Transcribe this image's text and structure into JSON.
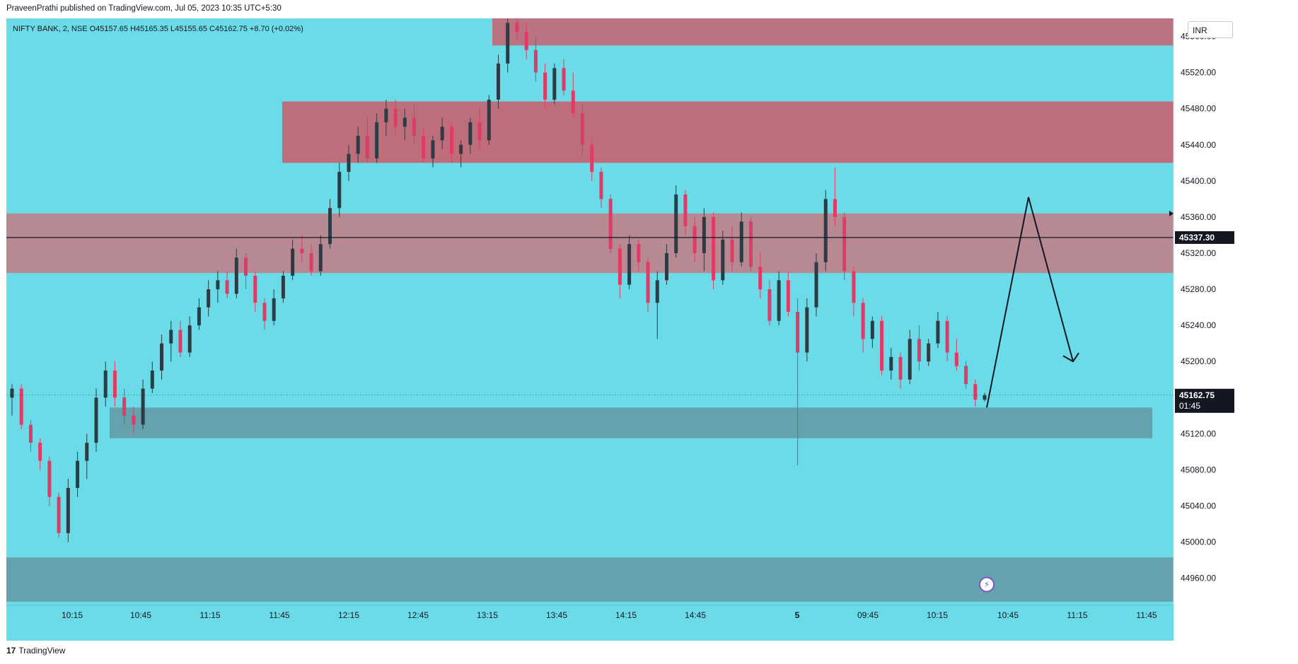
{
  "header": {
    "publish_line": "PraveenPrathi published on TradingView.com, Jul 05, 2023 10:35 UTC+5:30"
  },
  "legend": {
    "text": "NIFTY BANK, 2, NSE  O45157.65  H45165.35  L45155.65  C45162.75  +8.70 (+0.02%)"
  },
  "currency_button": "INR",
  "footer": {
    "brand": "TradingView",
    "logo_icon": "tradingview-logo-icon"
  },
  "colors": {
    "background": "#6bdbe7",
    "resistance_zone": "#c8626f",
    "mid_zone": "#c47a84",
    "support_zone": "#6399a3",
    "bull_candle": "#2d3c44",
    "bear_candle": "#e03b66",
    "line": "#131722"
  },
  "chart_data": {
    "type": "candlestick",
    "symbol": "NIFTY BANK",
    "interval": "2",
    "exchange": "NSE",
    "ylim": [
      44930,
      45580
    ],
    "y_ticks": [
      "44960.00",
      "45000.00",
      "45040.00",
      "45080.00",
      "45120.00",
      "45160.00",
      "45200.00",
      "45240.00",
      "45280.00",
      "45320.00",
      "45360.00",
      "45400.00",
      "45440.00",
      "45480.00",
      "45520.00",
      "45560.00"
    ],
    "x_ticks": [
      "10:15",
      "10:45",
      "11:15",
      "11:45",
      "12:15",
      "12:45",
      "13:15",
      "13:45",
      "14:15",
      "14:45",
      "5",
      "09:45",
      "10:15",
      "10:45",
      "11:15",
      "11:45"
    ],
    "horizontal_line": {
      "label": "45337.30",
      "value": 45337.3
    },
    "last_price": {
      "value": "45162.75",
      "countdown": "01:45"
    },
    "zones": [
      {
        "name": "top resistance",
        "from": 45550,
        "to": 45590
      },
      {
        "name": "upper resistance",
        "from": 45420,
        "to": 45488
      },
      {
        "name": "mid zone",
        "from": 45298,
        "to": 45364
      },
      {
        "name": "support",
        "from": 45115,
        "to": 45149
      },
      {
        "name": "lower support",
        "from": 44934,
        "to": 44983
      }
    ],
    "projection": [
      [
        45149,
        45382,
        45200
      ]
    ],
    "candles": [
      [
        45160,
        45175,
        45140,
        45170
      ],
      [
        45170,
        45175,
        45125,
        45130
      ],
      [
        45130,
        45135,
        45100,
        45110
      ],
      [
        45110,
        45115,
        45080,
        45090
      ],
      [
        45090,
        45095,
        45040,
        45050
      ],
      [
        45050,
        45055,
        45005,
        45010
      ],
      [
        45010,
        45070,
        45000,
        45060
      ],
      [
        45060,
        45100,
        45050,
        45090
      ],
      [
        45090,
        45120,
        45070,
        45110
      ],
      [
        45110,
        45170,
        45100,
        45160
      ],
      [
        45160,
        45200,
        45150,
        45190
      ],
      [
        45190,
        45200,
        45150,
        45160
      ],
      [
        45160,
        45170,
        45130,
        45140
      ],
      [
        45140,
        45150,
        45120,
        45130
      ],
      [
        45130,
        45180,
        45125,
        45170
      ],
      [
        45170,
        45200,
        45165,
        45190
      ],
      [
        45190,
        45230,
        45180,
        45220
      ],
      [
        45220,
        45245,
        45200,
        45235
      ],
      [
        45235,
        45245,
        45205,
        45210
      ],
      [
        45210,
        45250,
        45205,
        45240
      ],
      [
        45240,
        45270,
        45235,
        45260
      ],
      [
        45260,
        45290,
        45250,
        45280
      ],
      [
        45280,
        45300,
        45265,
        45290
      ],
      [
        45290,
        45300,
        45270,
        45275
      ],
      [
        45275,
        45325,
        45270,
        45315
      ],
      [
        45315,
        45320,
        45280,
        45295
      ],
      [
        45295,
        45300,
        45255,
        45265
      ],
      [
        45265,
        45270,
        45235,
        45245
      ],
      [
        45245,
        45280,
        45240,
        45270
      ],
      [
        45270,
        45300,
        45265,
        45295
      ],
      [
        45295,
        45335,
        45290,
        45325
      ],
      [
        45325,
        45340,
        45310,
        45320
      ],
      [
        45320,
        45330,
        45295,
        45300
      ],
      [
        45300,
        45340,
        45295,
        45330
      ],
      [
        45330,
        45380,
        45325,
        45370
      ],
      [
        45370,
        45420,
        45360,
        45410
      ],
      [
        45410,
        45440,
        45400,
        45430
      ],
      [
        45430,
        45460,
        45420,
        45450
      ],
      [
        45450,
        45470,
        45420,
        45425
      ],
      [
        45425,
        45475,
        45420,
        45465
      ],
      [
        45465,
        45490,
        45450,
        45480
      ],
      [
        45480,
        45490,
        45450,
        45460
      ],
      [
        45460,
        45480,
        45445,
        45470
      ],
      [
        45470,
        45485,
        45440,
        45450
      ],
      [
        45450,
        45460,
        45420,
        45425
      ],
      [
        45425,
        45450,
        45415,
        45445
      ],
      [
        45445,
        45470,
        45435,
        45460
      ],
      [
        45460,
        45465,
        45420,
        45430
      ],
      [
        45430,
        45445,
        45415,
        45440
      ],
      [
        45440,
        45470,
        45430,
        45465
      ],
      [
        45465,
        45480,
        45435,
        45445
      ],
      [
        45445,
        45495,
        45440,
        45490
      ],
      [
        45490,
        45540,
        45480,
        45530
      ],
      [
        45530,
        45585,
        45520,
        45575
      ],
      [
        45575,
        45590,
        45555,
        45565
      ],
      [
        45565,
        45575,
        45535,
        45545
      ],
      [
        45545,
        45560,
        45510,
        45520
      ],
      [
        45520,
        45530,
        45480,
        45490
      ],
      [
        45490,
        45530,
        45485,
        45525
      ],
      [
        45525,
        45535,
        45495,
        45500
      ],
      [
        45500,
        45520,
        45470,
        45475
      ],
      [
        45475,
        45485,
        45430,
        45440
      ],
      [
        45440,
        45445,
        45400,
        45410
      ],
      [
        45410,
        45415,
        45370,
        45380
      ],
      [
        45380,
        45385,
        45320,
        45325
      ],
      [
        45325,
        45330,
        45270,
        45285
      ],
      [
        45285,
        45340,
        45280,
        45330
      ],
      [
        45330,
        45335,
        45300,
        45310
      ],
      [
        45310,
        45315,
        45255,
        45265
      ],
      [
        45265,
        45300,
        45225,
        45290
      ],
      [
        45290,
        45330,
        45285,
        45320
      ],
      [
        45320,
        45395,
        45315,
        45385
      ],
      [
        45385,
        45390,
        45340,
        45350
      ],
      [
        45350,
        45360,
        45310,
        45320
      ],
      [
        45320,
        45370,
        45300,
        45360
      ],
      [
        45360,
        45365,
        45280,
        45290
      ],
      [
        45290,
        45345,
        45285,
        45335
      ],
      [
        45335,
        45350,
        45300,
        45310
      ],
      [
        45310,
        45365,
        45305,
        45355
      ],
      [
        45355,
        45360,
        45300,
        45305
      ],
      [
        45305,
        45320,
        45270,
        45280
      ],
      [
        45280,
        45290,
        45240,
        45245
      ],
      [
        45245,
        45300,
        45240,
        45290
      ],
      [
        45290,
        45300,
        45250,
        45255
      ],
      [
        45255,
        45270,
        45085,
        45210
      ],
      [
        45210,
        45270,
        45200,
        45260
      ],
      [
        45260,
        45320,
        45250,
        45310
      ],
      [
        45310,
        45390,
        45300,
        45380
      ],
      [
        45380,
        45415,
        45350,
        45360
      ],
      [
        45360,
        45365,
        45290,
        45300
      ],
      [
        45300,
        45305,
        45250,
        45265
      ],
      [
        45265,
        45270,
        45210,
        45225
      ],
      [
        45225,
        45250,
        45215,
        45245
      ],
      [
        45245,
        45250,
        45185,
        45190
      ],
      [
        45190,
        45215,
        45180,
        45205
      ],
      [
        45205,
        45210,
        45170,
        45180
      ],
      [
        45180,
        45235,
        45175,
        45225
      ],
      [
        45225,
        45240,
        45190,
        45200
      ],
      [
        45200,
        45225,
        45195,
        45220
      ],
      [
        45220,
        45255,
        45215,
        45245
      ],
      [
        45245,
        45250,
        45200,
        45210
      ],
      [
        45210,
        45225,
        45190,
        45195
      ],
      [
        45195,
        45200,
        45170,
        45175
      ],
      [
        45175,
        45180,
        45150,
        45157.65
      ],
      [
        45157.65,
        45165.35,
        45155.65,
        45162.75
      ]
    ]
  }
}
